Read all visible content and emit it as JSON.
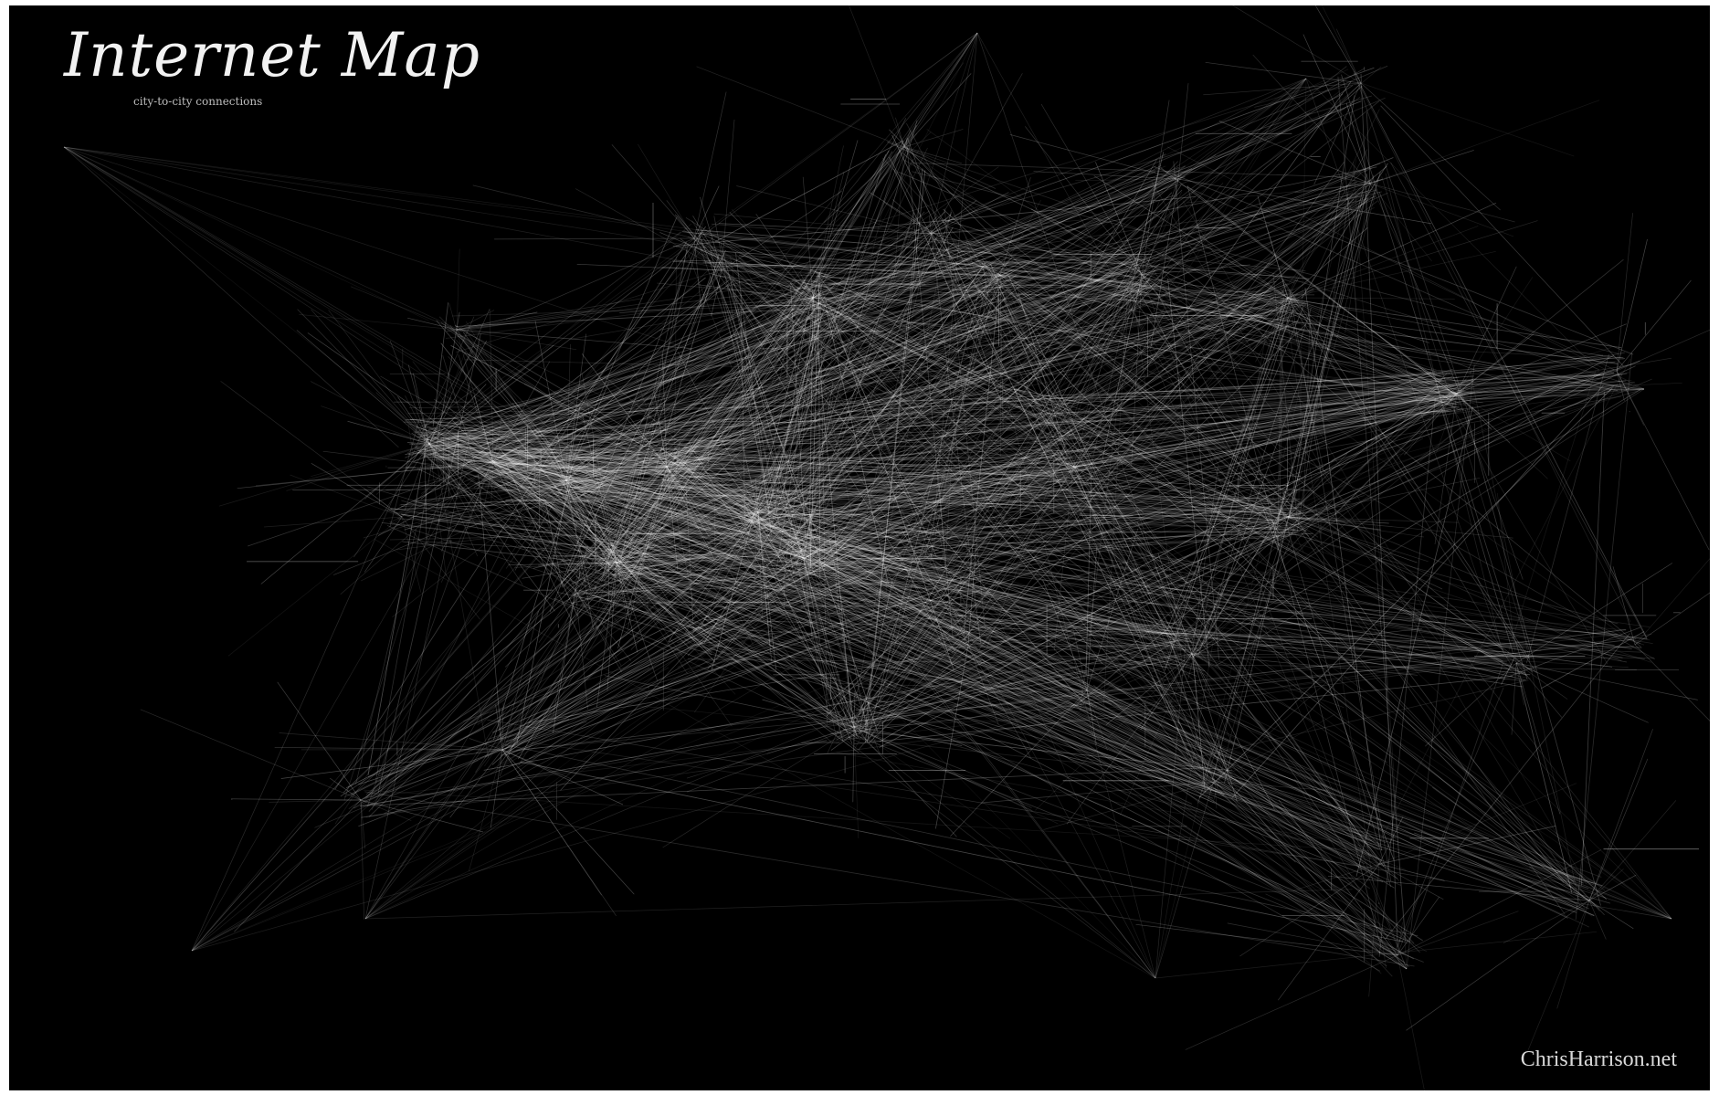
{
  "title": "Internet Map",
  "subtitle": "city-to-city connections",
  "credit": "ChrisHarrison.net",
  "colors": {
    "background": "#000000",
    "lines": "#ffffff",
    "text": "#f2f2f2"
  }
}
